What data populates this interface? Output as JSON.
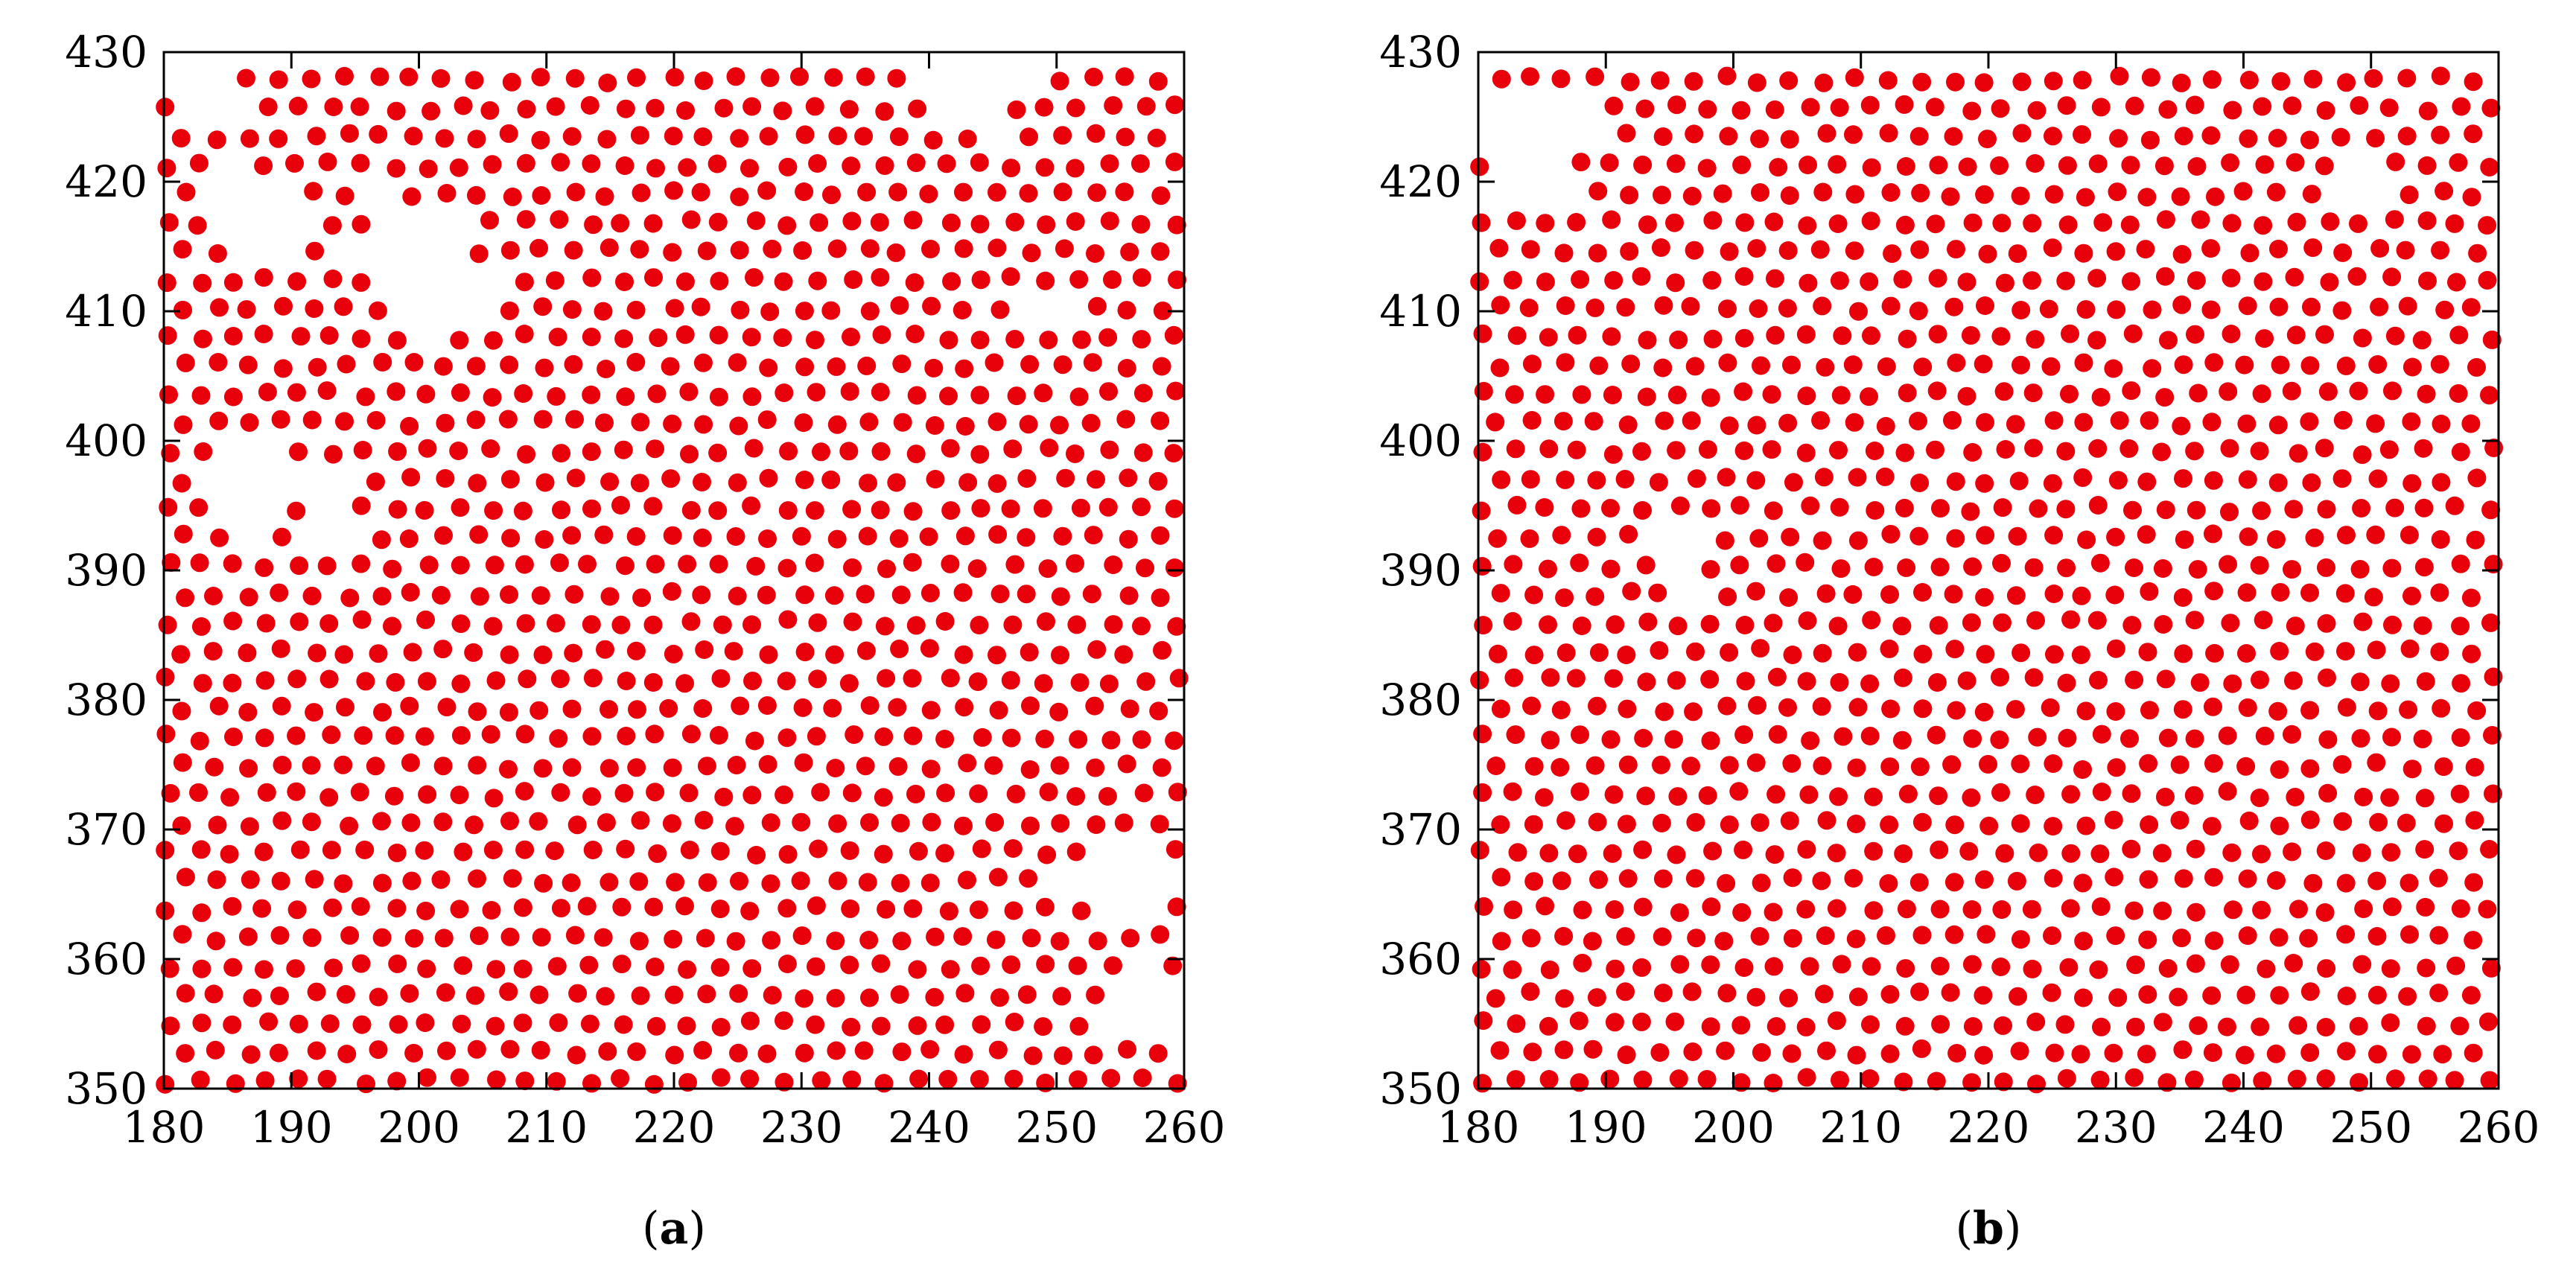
{
  "chart_data": [
    {
      "type": "scatter",
      "panel_label": "(a)",
      "panel_letter": "a",
      "xlim": [
        180,
        260
      ],
      "ylim": [
        350,
        430
      ],
      "xticks": [
        "180",
        "190",
        "200",
        "210",
        "220",
        "230",
        "240",
        "250",
        "260"
      ],
      "yticks": [
        "350",
        "360",
        "370",
        "380",
        "390",
        "400",
        "410",
        "420",
        "430"
      ],
      "grid": false,
      "legend": "none",
      "marker_color": "#e8000b",
      "points_description": "dense crystal-like arrangement of particles filling the domain x 180–260, y 350–430, spacing about 2.5 units, with voids near top-left (x 195–210, y 405–425), around (188, 395), lower-right (x 250–260, y 350–380) and top-right (x 240–255, y 420–430)",
      "spacing": 2.55,
      "voids": [
        {
          "cx": 200,
          "cy": 414,
          "r": 4.5
        },
        {
          "cx": 188,
          "cy": 418,
          "r": 3.0
        },
        {
          "cx": 186,
          "cy": 396,
          "r": 3.0
        },
        {
          "cx": 193,
          "cy": 394,
          "r": 2.2
        },
        {
          "cx": 255,
          "cy": 366,
          "r": 3.2
        },
        {
          "cx": 257,
          "cy": 356,
          "r": 2.6
        },
        {
          "cx": 244,
          "cy": 427,
          "r": 2.8
        },
        {
          "cx": 249,
          "cy": 410,
          "r": 1.8
        },
        {
          "cx": 183,
          "cy": 428,
          "r": 2.5
        }
      ]
    },
    {
      "type": "scatter",
      "panel_label": "(b)",
      "panel_letter": "b",
      "xlim": [
        180,
        260
      ],
      "ylim": [
        350,
        430
      ],
      "xticks": [
        "180",
        "190",
        "200",
        "210",
        "220",
        "230",
        "240",
        "250",
        "260"
      ],
      "yticks": [
        "350",
        "360",
        "370",
        "380",
        "390",
        "400",
        "410",
        "420",
        "430"
      ],
      "grid": false,
      "legend": "none",
      "marker_color": "#e8000b",
      "points_description": "dense, more uniform crystal-like arrangement of particles filling the domain, spacing about 2.5 units, with a void near the top-left corner (x 180–195, y 415–430) and a small void near (196, 390)",
      "spacing": 2.55,
      "voids": [
        {
          "cx": 184,
          "cy": 423,
          "r": 4.0
        },
        {
          "cx": 196,
          "cy": 390,
          "r": 2.0
        },
        {
          "cx": 248,
          "cy": 421,
          "r": 1.6
        }
      ]
    }
  ]
}
